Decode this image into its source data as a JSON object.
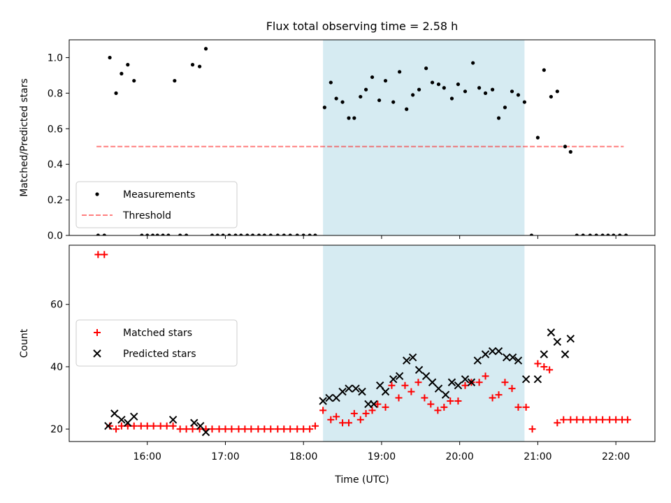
{
  "figure": {
    "title": "Flux total observing time = 2.58 h",
    "xlabel": "Time (UTC)"
  },
  "colors": {
    "span_fill": "#add8e6",
    "threshold": "#ff0000",
    "matched": "#ff0000",
    "predicted": "#000000",
    "measurement": "#000000"
  },
  "chart_data": [
    {
      "type": "scatter",
      "title": "Flux total observing time = 2.58 h",
      "xlabel": "",
      "ylabel": "Matched/Predicted stars",
      "x_unit": "hours UTC",
      "xlim": [
        15.0,
        22.5
      ],
      "ylim": [
        0.0,
        1.1
      ],
      "yticks": [
        0.0,
        0.2,
        0.4,
        0.6,
        0.8,
        1.0
      ],
      "ytick_labels": [
        "0.0",
        "0.2",
        "0.4",
        "0.6",
        "0.8",
        "1.0"
      ],
      "xticks": [
        16,
        17,
        18,
        19,
        20,
        21,
        22
      ],
      "shaded_span": [
        18.25,
        20.83
      ],
      "legend": {
        "position": "lower-left",
        "entries": [
          "Measurements",
          "Threshold"
        ]
      },
      "threshold": {
        "name": "Threshold",
        "y": 0.5,
        "x_range": [
          15.35,
          22.1
        ]
      },
      "series": [
        {
          "name": "Measurements",
          "marker": "dot",
          "x": [
            15.37,
            15.45,
            15.52,
            15.6,
            15.67,
            15.75,
            15.83,
            15.93,
            16.0,
            16.07,
            16.13,
            16.2,
            16.27,
            16.35,
            16.42,
            16.5,
            16.58,
            16.67,
            16.75,
            16.83,
            16.9,
            16.97,
            17.05,
            17.13,
            17.2,
            17.28,
            17.35,
            17.43,
            17.5,
            17.58,
            17.67,
            17.75,
            17.83,
            17.92,
            18.0,
            18.08,
            18.15,
            18.27,
            18.35,
            18.42,
            18.5,
            18.58,
            18.65,
            18.73,
            18.8,
            18.88,
            18.97,
            19.05,
            19.15,
            19.23,
            19.32,
            19.4,
            19.48,
            19.57,
            19.65,
            19.73,
            19.8,
            19.9,
            19.98,
            20.07,
            20.17,
            20.25,
            20.33,
            20.42,
            20.5,
            20.58,
            20.67,
            20.75,
            20.83,
            20.92,
            21.0,
            21.08,
            21.17,
            21.25,
            21.35,
            21.42,
            21.5,
            21.58,
            21.67,
            21.75,
            21.83,
            21.9,
            21.97,
            22.05,
            22.13
          ],
          "y": [
            0.0,
            0.0,
            1.0,
            0.8,
            0.91,
            0.96,
            0.87,
            0.0,
            0.0,
            0.0,
            0.0,
            0.0,
            0.0,
            0.87,
            0.0,
            0.0,
            0.96,
            0.95,
            1.05,
            0.0,
            0.0,
            0.0,
            0.0,
            0.0,
            0.0,
            0.0,
            0.0,
            0.0,
            0.0,
            0.0,
            0.0,
            0.0,
            0.0,
            0.0,
            0.0,
            0.0,
            0.0,
            0.72,
            0.86,
            0.77,
            0.75,
            0.66,
            0.66,
            0.78,
            0.82,
            0.89,
            0.76,
            0.87,
            0.75,
            0.92,
            0.71,
            0.79,
            0.82,
            0.94,
            0.86,
            0.85,
            0.83,
            0.77,
            0.85,
            0.81,
            0.97,
            0.83,
            0.8,
            0.82,
            0.66,
            0.72,
            0.81,
            0.79,
            0.75,
            0.0,
            0.55,
            0.93,
            0.78,
            0.81,
            0.5,
            0.47,
            0.0,
            0.0,
            0.0,
            0.0,
            0.0,
            0.0,
            0.0,
            0.0,
            0.0
          ]
        }
      ]
    },
    {
      "type": "scatter",
      "title": "",
      "xlabel": "Time (UTC)",
      "ylabel": "Count",
      "x_unit": "hours UTC",
      "xlim": [
        15.0,
        22.5
      ],
      "ylim": [
        16,
        79
      ],
      "yticks": [
        20,
        40,
        60
      ],
      "ytick_labels": [
        "20",
        "40",
        "60"
      ],
      "xticks": [
        16,
        17,
        18,
        19,
        20,
        21,
        22
      ],
      "xtick_labels": [
        "16:00",
        "17:00",
        "18:00",
        "19:00",
        "20:00",
        "21:00",
        "22:00"
      ],
      "shaded_span": [
        18.25,
        20.83
      ],
      "legend": {
        "position": "center-left",
        "entries": [
          "Matched stars",
          "Predicted stars"
        ]
      },
      "series": [
        {
          "name": "Matched stars",
          "marker": "plus",
          "x": [
            15.37,
            15.45,
            15.52,
            15.6,
            15.67,
            15.75,
            15.83,
            15.92,
            16.0,
            16.08,
            16.17,
            16.25,
            16.33,
            16.42,
            16.5,
            16.58,
            16.67,
            16.75,
            16.83,
            16.92,
            17.0,
            17.08,
            17.17,
            17.25,
            17.33,
            17.42,
            17.5,
            17.58,
            17.67,
            17.75,
            17.83,
            17.92,
            18.0,
            18.08,
            18.15,
            18.25,
            18.35,
            18.42,
            18.5,
            18.58,
            18.65,
            18.73,
            18.8,
            18.88,
            18.95,
            19.05,
            19.13,
            19.22,
            19.3,
            19.38,
            19.47,
            19.55,
            19.63,
            19.72,
            19.8,
            19.88,
            19.98,
            20.07,
            20.15,
            20.25,
            20.33,
            20.42,
            20.5,
            20.58,
            20.67,
            20.75,
            20.85,
            20.93,
            21.0,
            21.08,
            21.15,
            21.25,
            21.33,
            21.42,
            21.5,
            21.58,
            21.67,
            21.75,
            21.83,
            21.92,
            22.0,
            22.08,
            22.15
          ],
          "y": [
            76,
            76,
            21,
            20,
            21,
            21,
            21,
            21,
            21,
            21,
            21,
            21,
            21,
            20,
            20,
            20,
            20,
            20,
            20,
            20,
            20,
            20,
            20,
            20,
            20,
            20,
            20,
            20,
            20,
            20,
            20,
            20,
            20,
            20,
            21,
            26,
            23,
            24,
            22,
            22,
            25,
            23,
            25,
            26,
            28,
            27,
            34,
            30,
            34,
            32,
            35,
            30,
            28,
            26,
            27,
            29,
            29,
            34,
            35,
            35,
            37,
            30,
            31,
            35,
            33,
            27,
            27,
            20,
            41,
            40,
            39,
            22,
            23,
            23,
            23,
            23,
            23,
            23,
            23,
            23,
            23,
            23,
            23
          ]
        },
        {
          "name": "Predicted stars",
          "marker": "x",
          "x": [
            15.5,
            15.58,
            15.67,
            15.75,
            15.83,
            16.33,
            16.6,
            16.68,
            16.75,
            18.25,
            18.33,
            18.42,
            18.5,
            18.58,
            18.67,
            18.75,
            18.83,
            18.9,
            18.98,
            19.05,
            19.15,
            19.23,
            19.32,
            19.4,
            19.48,
            19.57,
            19.65,
            19.73,
            19.82,
            19.9,
            19.98,
            20.07,
            20.15,
            20.23,
            20.33,
            20.42,
            20.5,
            20.6,
            20.68,
            20.75,
            20.85,
            21.0,
            21.08,
            21.17,
            21.25,
            21.35,
            21.42
          ],
          "y": [
            21,
            25,
            23,
            22,
            24,
            23,
            22,
            21,
            19,
            29,
            30,
            30,
            32,
            33,
            33,
            32,
            28,
            28,
            34,
            32,
            36,
            37,
            42,
            43,
            39,
            37,
            35,
            33,
            31,
            35,
            34,
            36,
            35,
            42,
            44,
            45,
            45,
            43,
            43,
            42,
            36,
            36,
            44,
            51,
            48,
            44,
            49
          ]
        }
      ]
    }
  ]
}
